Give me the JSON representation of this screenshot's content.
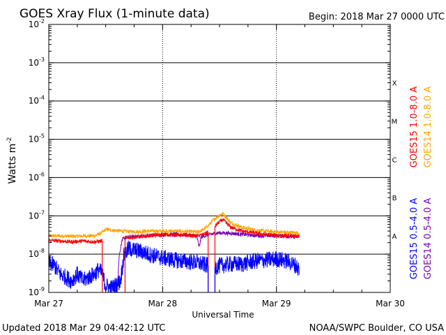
{
  "header": {
    "title": "GOES Xray Flux (1-minute data)",
    "begin": "Begin:  2018 Mar 27 0000 UTC"
  },
  "footer": {
    "updated": "Updated 2018 Mar 29 04:42:12 UTC",
    "source": "NOAA/SWPC Boulder, CO USA"
  },
  "colors": {
    "goes15_long": "#ff0000",
    "goes14_long": "#ffa500",
    "goes15_short": "#0000ff",
    "goes14_short": "#7a00b4"
  },
  "chart_data": {
    "type": "line",
    "title": "GOES Xray Flux (1-minute data)",
    "xlabel": "Universal Time",
    "ylabel": "Watts m-2",
    "y_scale": "log",
    "ylim": [
      1e-09,
      0.01
    ],
    "xlim_days": [
      0,
      3
    ],
    "x_ticks": [
      "Mar 27",
      "Mar 28",
      "Mar 29",
      "Mar 30"
    ],
    "y_ticks": [
      {
        "value": 0.01,
        "base": "10",
        "exp": "-2"
      },
      {
        "value": 0.001,
        "base": "10",
        "exp": "-3"
      },
      {
        "value": 0.0001,
        "base": "10",
        "exp": "-4"
      },
      {
        "value": 1e-05,
        "base": "10",
        "exp": "-5"
      },
      {
        "value": 1e-06,
        "base": "10",
        "exp": "-6"
      },
      {
        "value": 1e-07,
        "base": "10",
        "exp": "-7"
      },
      {
        "value": 1e-08,
        "base": "10",
        "exp": "-8"
      },
      {
        "value": 1e-09,
        "base": "10",
        "exp": "-9"
      }
    ],
    "flare_classes": [
      {
        "label": "X",
        "value": 0.0003
      },
      {
        "label": "M",
        "value": 3e-05
      },
      {
        "label": "C",
        "value": 3e-06
      },
      {
        "label": "B",
        "value": 3e-07
      },
      {
        "label": "A",
        "value": 3e-08
      }
    ],
    "grid": true,
    "legend_position": "right, vertical",
    "series": [
      {
        "name": "GOES15 1.0-8.0 A",
        "color": "#ff0000",
        "points": [
          [
            0.0,
            2.3e-08
          ],
          [
            0.1,
            2.2e-08
          ],
          [
            0.2,
            2.1e-08
          ],
          [
            0.3,
            2.2e-08
          ],
          [
            0.4,
            2.1e-08
          ],
          [
            0.46,
            2.2e-08
          ],
          [
            0.5,
            2.4e-08
          ],
          [
            0.55,
            2.5e-08
          ],
          [
            0.6,
            2.6e-08
          ],
          [
            0.7,
            2.7e-08
          ],
          [
            0.8,
            2.9e-08
          ],
          [
            0.9,
            3.1e-08
          ],
          [
            1.0,
            3.2e-08
          ],
          [
            1.1,
            3.2e-08
          ],
          [
            1.2,
            3.1e-08
          ],
          [
            1.3,
            3e-08
          ],
          [
            1.35,
            3.2e-08
          ],
          [
            1.4,
            3.8e-08
          ],
          [
            1.45,
            5e-08
          ],
          [
            1.5,
            7e-08
          ],
          [
            1.53,
            8e-08
          ],
          [
            1.56,
            6.5e-08
          ],
          [
            1.6,
            5e-08
          ],
          [
            1.7,
            4e-08
          ],
          [
            1.8,
            3.6e-08
          ],
          [
            1.9,
            3.3e-08
          ],
          [
            2.0,
            3.1e-08
          ],
          [
            2.1,
            3e-08
          ],
          [
            2.2,
            2.9e-08
          ]
        ]
      },
      {
        "name": "GOES14 1.0-8.0 A",
        "color": "#ffa500",
        "points": [
          [
            0.0,
            3e-08
          ],
          [
            0.1,
            3e-08
          ],
          [
            0.2,
            2.9e-08
          ],
          [
            0.3,
            3e-08
          ],
          [
            0.4,
            3e-08
          ],
          [
            0.46,
            3.5e-08
          ],
          [
            0.5,
            4.4e-08
          ],
          [
            0.6,
            4.1e-08
          ],
          [
            0.7,
            3.9e-08
          ],
          [
            0.8,
            3.9e-08
          ],
          [
            0.9,
            4e-08
          ],
          [
            1.0,
            4e-08
          ],
          [
            1.1,
            4e-08
          ],
          [
            1.2,
            3.9e-08
          ],
          [
            1.3,
            3.8e-08
          ],
          [
            1.35,
            4.2e-08
          ],
          [
            1.4,
            5.5e-08
          ],
          [
            1.45,
            8e-08
          ],
          [
            1.5,
            1.05e-07
          ],
          [
            1.53,
            1.15e-07
          ],
          [
            1.56,
            9e-08
          ],
          [
            1.6,
            6.5e-08
          ],
          [
            1.7,
            5e-08
          ],
          [
            1.8,
            4.3e-08
          ],
          [
            1.9,
            4e-08
          ],
          [
            2.0,
            3.8e-08
          ],
          [
            2.1,
            3.7e-08
          ],
          [
            2.2,
            3.6e-08
          ]
        ]
      },
      {
        "name": "GOES15 0.5-4.0 A",
        "color": "#0000ff",
        "points": [
          [
            0.0,
            6e-09
          ],
          [
            0.05,
            5e-09
          ],
          [
            0.1,
            3e-09
          ],
          [
            0.15,
            2.5e-09
          ],
          [
            0.2,
            2e-09
          ],
          [
            0.25,
            3e-09
          ],
          [
            0.3,
            2e-09
          ],
          [
            0.35,
            2.5e-09
          ],
          [
            0.4,
            3e-09
          ],
          [
            0.44,
            4e-09
          ],
          [
            0.47,
            3e-09
          ],
          [
            0.5,
            1.5e-09
          ],
          [
            0.55,
            1.3e-09
          ],
          [
            0.6,
            1.6e-09
          ],
          [
            0.63,
            2e-09
          ],
          [
            0.66,
            9e-09
          ],
          [
            0.7,
            1.4e-08
          ],
          [
            0.8,
            1.2e-08
          ],
          [
            0.9,
            9.5e-09
          ],
          [
            1.0,
            8e-09
          ],
          [
            1.1,
            7e-09
          ],
          [
            1.2,
            6.5e-09
          ],
          [
            1.3,
            6e-09
          ],
          [
            1.35,
            5.5e-09
          ],
          [
            1.45,
            4.5e-09
          ],
          [
            1.5,
            5e-09
          ],
          [
            1.6,
            5.5e-09
          ],
          [
            1.7,
            5.5e-09
          ],
          [
            1.8,
            6.5e-09
          ],
          [
            1.9,
            7e-09
          ],
          [
            2.0,
            7.5e-09
          ],
          [
            2.1,
            6.5e-09
          ],
          [
            2.17,
            5e-09
          ],
          [
            2.2,
            4e-09
          ]
        ]
      },
      {
        "name": "GOES14 0.5-4.0 A",
        "color": "#7a00b4",
        "points": [
          [
            0.6,
            1.1e-09
          ],
          [
            0.62,
            1e-08
          ],
          [
            0.65,
            2.6e-08
          ],
          [
            0.7,
            2.8e-08
          ],
          [
            0.8,
            2.9e-08
          ],
          [
            0.9,
            3.1e-08
          ],
          [
            1.0,
            3.2e-08
          ],
          [
            1.1,
            3.3e-08
          ],
          [
            1.2,
            3.2e-08
          ],
          [
            1.3,
            3e-08
          ],
          [
            1.32,
            1.5e-08
          ],
          [
            1.34,
            2.8e-08
          ],
          [
            1.4,
            3.2e-08
          ],
          [
            1.5,
            3.6e-08
          ],
          [
            1.6,
            3.5e-08
          ],
          [
            1.7,
            3.3e-08
          ],
          [
            1.8,
            3.1e-08
          ],
          [
            1.9,
            3e-08
          ],
          [
            2.0,
            3e-08
          ],
          [
            2.1,
            2.9e-08
          ],
          [
            2.2,
            2.8e-08
          ]
        ]
      }
    ],
    "gaps": [
      {
        "series": "GOES15 1.0-8.0 A",
        "from_day": 0.47,
        "to_day": 0.67,
        "floor_edges": true
      },
      {
        "series": "GOES15 1.0-8.0 A",
        "from_day": 1.4,
        "to_day": 1.46,
        "floor_edges": true
      },
      {
        "series": "GOES15 0.5-4.0 A",
        "from_day": 1.4,
        "to_day": 1.46,
        "floor_edges": true
      }
    ]
  }
}
